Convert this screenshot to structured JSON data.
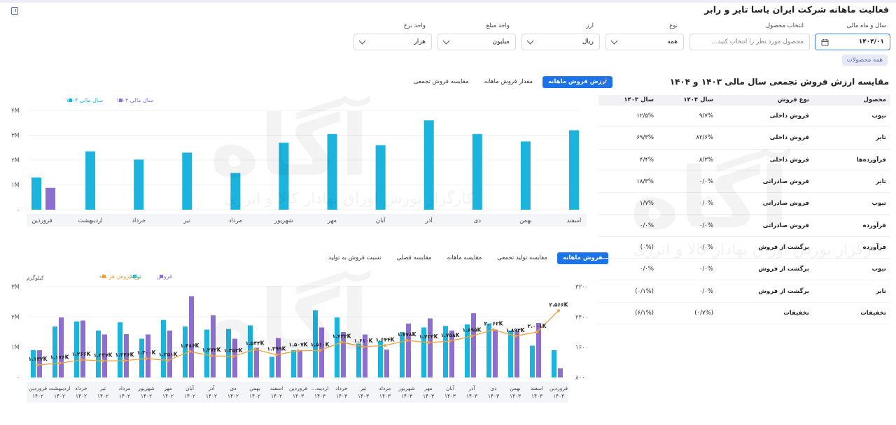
{
  "page": {
    "title": "فعالیت ماهانه شرکت ایران یاسا تایر و رابر"
  },
  "filters": {
    "fiscal": {
      "label": "سال و ماه مالی",
      "value": "۱۴۰۴/۰۱"
    },
    "product": {
      "label": "انتخاب محصول",
      "placeholder": "محصول مورد نظر را انتخاب کنید..."
    },
    "type": {
      "label": "نوع",
      "value": "همه"
    },
    "currency": {
      "label": "ارز",
      "value": "ریال"
    },
    "amount_unit": {
      "label": "واحد مبلغ",
      "value": "میلیون"
    },
    "rate_unit": {
      "label": "واحد نرخ",
      "value": "هزار"
    },
    "chip": "همه محصولات"
  },
  "top_chart": {
    "tabs": [
      "ارزش فروش ماهانه",
      "مقدار فروش ماهانه",
      "مقایسه فروش تجمعی"
    ],
    "legend": [
      "سال مالی ۱۴۰۴",
      "سال مالی ۱۴۰۳"
    ],
    "colors": {
      "fy1403": "#1cb3dd",
      "fy1404": "#8d6fd1"
    },
    "y_ticks": [
      "۰",
      "۱M",
      "۲M",
      "۳M",
      "۴M"
    ]
  },
  "bottom_chart": {
    "tabs": [
      "فروش ماهانه",
      "مقایسه تولید تجمعی",
      "مقایسه ماهانه",
      "مقایسه فصلی",
      "نسبت فروش به تولید"
    ],
    "legend": [
      "فروش",
      "تولید",
      "نرخ فروش هر ماه"
    ],
    "colors": {
      "sales": "#8d6fd1",
      "production": "#1cb3dd",
      "rate": "#f0a33a"
    },
    "y_left_unit": "کیلوگرم",
    "y_left_ticks": [
      "۰",
      "۱M",
      "۲M",
      "۳M"
    ],
    "y_right_ticks": [
      "۸۰۰",
      "۱۶۰۰",
      "۲۴۰۰",
      "۳۲۰۰"
    ]
  },
  "table": {
    "title": "مقایسه ارزش فروش تجمعی سال مالی ۱۴۰۳ و ۱۴۰۴",
    "headers": [
      "محصول",
      "نوع فروش",
      "سال ۱۴۰۴",
      "سال ۱۴۰۳"
    ],
    "rows": [
      [
        "تیوب",
        "فروش داخلی",
        "۹/۷%",
        "۱۲/۵%"
      ],
      [
        "تایر",
        "فروش داخلی",
        "۸۲/۶%",
        "۶۹/۳%"
      ],
      [
        "فرآورده‌ها",
        "فروش داخلی",
        "۸/۳%",
        "۴/۴%"
      ],
      [
        "تایر",
        "فروش صادراتی",
        "۰/۰%",
        "۱۸/۳%"
      ],
      [
        "تیوب",
        "فروش صادراتی",
        "۰/۰%",
        "۱/۷%"
      ],
      [
        "فرآورده",
        "فروش صادراتی",
        "۰/۰%",
        "۰/۰%"
      ],
      [
        "فرآورده",
        "برگشت از فروش",
        "۰/۰%",
        "(۰%)"
      ],
      [
        "تیوب",
        "برگشت از فروش",
        "۰/۰%",
        "۰/۰%"
      ],
      [
        "تایر",
        "برگشت از فروش",
        "۰/۰%",
        "(۰/۱%)"
      ],
      [
        "تخفیفات",
        "تخفیفات",
        "(۰/۷%)",
        "(۶/۱%)"
      ]
    ]
  },
  "watermark": {
    "logo": "آگاه",
    "sub": "کارگزار بورس اوراق بهادار کالا و انرژی"
  },
  "chart_data": [
    {
      "type": "bar",
      "categories": [
        "فروردین",
        "اردیبهشت",
        "خرداد",
        "تیر",
        "مرداد",
        "شهریور",
        "مهر",
        "آبان",
        "آذر",
        "دی",
        "بهمن",
        "اسفند"
      ],
      "series": [
        {
          "name": "سال مالی ۱۴۰۳",
          "values": [
            1.3,
            2.35,
            2.02,
            2.3,
            1.48,
            2.7,
            3.05,
            2.6,
            3.6,
            3.05,
            2.75,
            3.2
          ]
        },
        {
          "name": "سال مالی ۱۴۰۴",
          "values": [
            0.88,
            null,
            null,
            null,
            null,
            null,
            null,
            null,
            null,
            null,
            null,
            null
          ]
        }
      ],
      "ylim": [
        0,
        4
      ],
      "y_unit": "M"
    },
    {
      "type": "bar",
      "categories": [
        "فروردین ۱۴۰۲",
        "اردیبهشت ۱۴۰۲",
        "خرداد ۱۴۰۲",
        "تیر ۱۴۰۲",
        "مرداد ۱۴۰۲",
        "شهریور ۱۴۰۲",
        "مهر ۱۴۰۲",
        "آبان ۱۴۰۲",
        "آذر ۱۴۰۲",
        "دی ۱۴۰۲",
        "بهمن ۱۴۰۲",
        "اسفند ۱۴۰۲",
        "فروردین ۱۴۰۳",
        "اردیبه... ۱۴۰۳",
        "خرداد ۱۴۰۳",
        "تیر ۱۴۰۳",
        "مرداد ۱۴۰۳",
        "شهریور ۱۴۰۳",
        "مهر ۱۴۰۳",
        "آبان ۱۴۰۳",
        "آذر ۱۴۰۳",
        "دی ۱۴۰۳",
        "بهمن ۱۴۰۳",
        "اسفند ۱۴۰۳",
        "فروردین ۱۴۰۴"
      ],
      "series": [
        {
          "name": "تولید",
          "values": [
            0.9,
            1.68,
            1.85,
            1.55,
            1.82,
            1.28,
            1.9,
            1.68,
            1.58,
            1.6,
            1.72,
            0.68,
            0.9,
            2.22,
            1.98,
            1.12,
            1.2,
            1.5,
            1.65,
            1.7,
            1.75,
            1.78,
            1.55,
            1.05,
            0.9
          ]
        },
        {
          "name": "فروش",
          "values": [
            0.9,
            1.98,
            1.88,
            1.42,
            1.43,
            1.42,
            1.55,
            2.68,
            2.05,
            1.28,
            0.98,
            1.3,
            0.88,
            1.65,
            1.5,
            1.42,
            0.92,
            1.78,
            1.95,
            1.55,
            2.12,
            1.58,
            1.55,
            1.8,
            0.3
          ]
        },
        {
          "name": "نرخ فروش هر ماه",
          "axis": "right",
          "values": [
            1132,
            1176,
            1266,
            1237,
            1246,
            1300,
            1251,
            1486,
            1372,
            1353,
            1544,
            1399,
            1507,
            1510,
            1733,
            1610,
            1644,
            1778,
            1722,
            1758,
            1895,
            2062,
            1893,
            2001,
            2566
          ]
        }
      ],
      "data_labels": [
        "۱.۱۳۲K",
        "۱.۱۷۶K",
        "۱.۲۶۶K",
        "۱.۲۳۷K",
        "۱.۲۴۶K",
        "۱.۳۰۰K",
        "۱.۲۵۱K",
        "۱.۴۸۶K",
        "۱.۳۷۲K",
        "۱.۳۵۳K",
        "۱.۵۴۴K",
        "۱.۳۹۹K",
        "۱.۵۰۷K",
        "۱.۵۱۰K",
        "۱.۷۳۳K",
        "۱.۶۱۰K",
        "۱.۶۴۴K",
        "۱.۷۷۸K",
        "۱.۷۲۲K",
        "۱.۷۵۸K",
        "۱.۸۹۵K",
        "۲.۰۶۲K",
        "۱.۸۹۳K",
        "۲.۰۰۱K",
        "۲.۵۶۶K"
      ],
      "ylim_left": [
        0,
        3
      ],
      "ylim_right": [
        800,
        3200
      ],
      "ylabel": "کیلوگرم"
    }
  ]
}
